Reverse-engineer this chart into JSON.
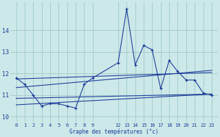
{
  "xlabel": "Graphe des températures (°c)",
  "background_color": "#cce8e8",
  "grid_color": "#9ec8c8",
  "line_color": "#1a3a9a",
  "ylim": [
    9.75,
    15.3
  ],
  "xlim": [
    -0.7,
    23.7
  ],
  "yticks": [
    10,
    11,
    12,
    13,
    14
  ],
  "xticks": [
    0,
    1,
    2,
    3,
    4,
    5,
    6,
    7,
    8,
    9,
    12,
    13,
    14,
    15,
    16,
    17,
    18,
    19,
    20,
    21,
    22,
    23
  ],
  "series1_x": [
    0,
    1,
    2,
    3,
    4,
    5,
    6,
    7,
    8,
    9,
    12,
    13,
    14,
    15,
    16,
    17,
    18,
    19,
    20,
    21,
    22,
    23
  ],
  "series1_y": [
    11.8,
    11.5,
    11.0,
    10.5,
    10.6,
    10.6,
    10.5,
    10.4,
    11.5,
    11.8,
    12.5,
    15.0,
    12.4,
    13.3,
    13.1,
    11.3,
    12.6,
    12.1,
    11.7,
    11.7,
    11.1,
    11.0
  ],
  "trend1_x": [
    0,
    23
  ],
  "trend1_y": [
    11.75,
    12.05
  ],
  "trend2_x": [
    0,
    23
  ],
  "trend2_y": [
    11.35,
    12.15
  ],
  "trend3_x": [
    0,
    23
  ],
  "trend3_y": [
    10.85,
    11.05
  ],
  "trend4_x": [
    0,
    23
  ],
  "trend4_y": [
    10.55,
    11.05
  ]
}
